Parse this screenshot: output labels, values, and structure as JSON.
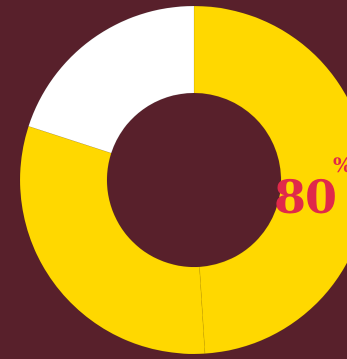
{
  "chart_data": {
    "type": "pie",
    "categories": [
      "",
      "",
      ""
    ],
    "values": [
      49,
      31,
      20
    ],
    "colors": [
      "#ffd800",
      "#ffd800",
      "#ffffff"
    ],
    "background": "#58202b",
    "labels": {
      "value": "80",
      "unit": "%"
    },
    "label_color": "#e0294a"
  }
}
